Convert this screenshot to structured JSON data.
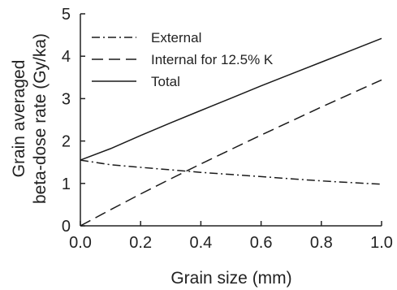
{
  "chart_data": {
    "type": "line",
    "title": "",
    "xlabel": "Grain size (mm)",
    "ylabel_lines": [
      "Grain averaged",
      "beta-dose rate (Gy/ka)"
    ],
    "xlim": [
      0,
      1.0
    ],
    "ylim": [
      0,
      5
    ],
    "x_ticks": [
      "0.0",
      "0.2",
      "0.4",
      "0.6",
      "0.8",
      "1.0"
    ],
    "y_ticks": [
      "0",
      "1",
      "2",
      "3",
      "4",
      "5"
    ],
    "grid": false,
    "legend_position": "top-left",
    "x": [
      0.0,
      0.1,
      0.2,
      0.3,
      0.4,
      0.5,
      0.6,
      0.7,
      0.8,
      0.9,
      1.0
    ],
    "series": [
      {
        "name": "External",
        "style": "dash-dot",
        "values": [
          1.55,
          1.44,
          1.38,
          1.32,
          1.26,
          1.21,
          1.16,
          1.11,
          1.06,
          1.02,
          0.98
        ]
      },
      {
        "name": "Internal for 12.5% K",
        "style": "dashed",
        "values": [
          0.0,
          0.38,
          0.75,
          1.11,
          1.46,
          1.8,
          2.14,
          2.47,
          2.8,
          3.12,
          3.44
        ]
      },
      {
        "name": "Total",
        "style": "solid",
        "values": [
          1.55,
          1.82,
          2.13,
          2.43,
          2.72,
          3.01,
          3.3,
          3.58,
          3.86,
          4.14,
          4.42
        ]
      }
    ]
  }
}
